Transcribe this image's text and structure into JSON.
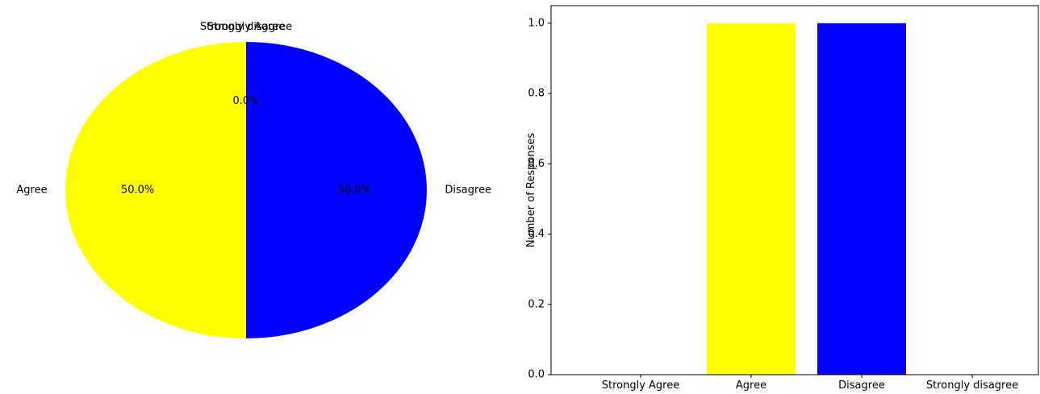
{
  "chart_data": [
    {
      "type": "pie",
      "categories": [
        "Strongly Agree",
        "Agree",
        "Disagree",
        "Strongly disagree"
      ],
      "values": [
        0,
        1,
        1,
        0
      ],
      "percent_labels": [
        "0.0%",
        "50.0%",
        "50.0%",
        "0.0%"
      ],
      "colors": [
        "#008000",
        "#ffff00",
        "#0000ff",
        "#ff0000"
      ]
    },
    {
      "type": "bar",
      "categories": [
        "Strongly Agree",
        "Agree",
        "Disagree",
        "Strongly disagree"
      ],
      "values": [
        0,
        1,
        1,
        0
      ],
      "colors": [
        "#008000",
        "#ffff00",
        "#0000ff",
        "#ff0000"
      ],
      "ylabel": "Number of Responses",
      "ylim": [
        0,
        1.05
      ],
      "yticks": [
        "0.0",
        "0.2",
        "0.4",
        "0.6",
        "0.8",
        "1.0"
      ],
      "grid": false
    }
  ]
}
